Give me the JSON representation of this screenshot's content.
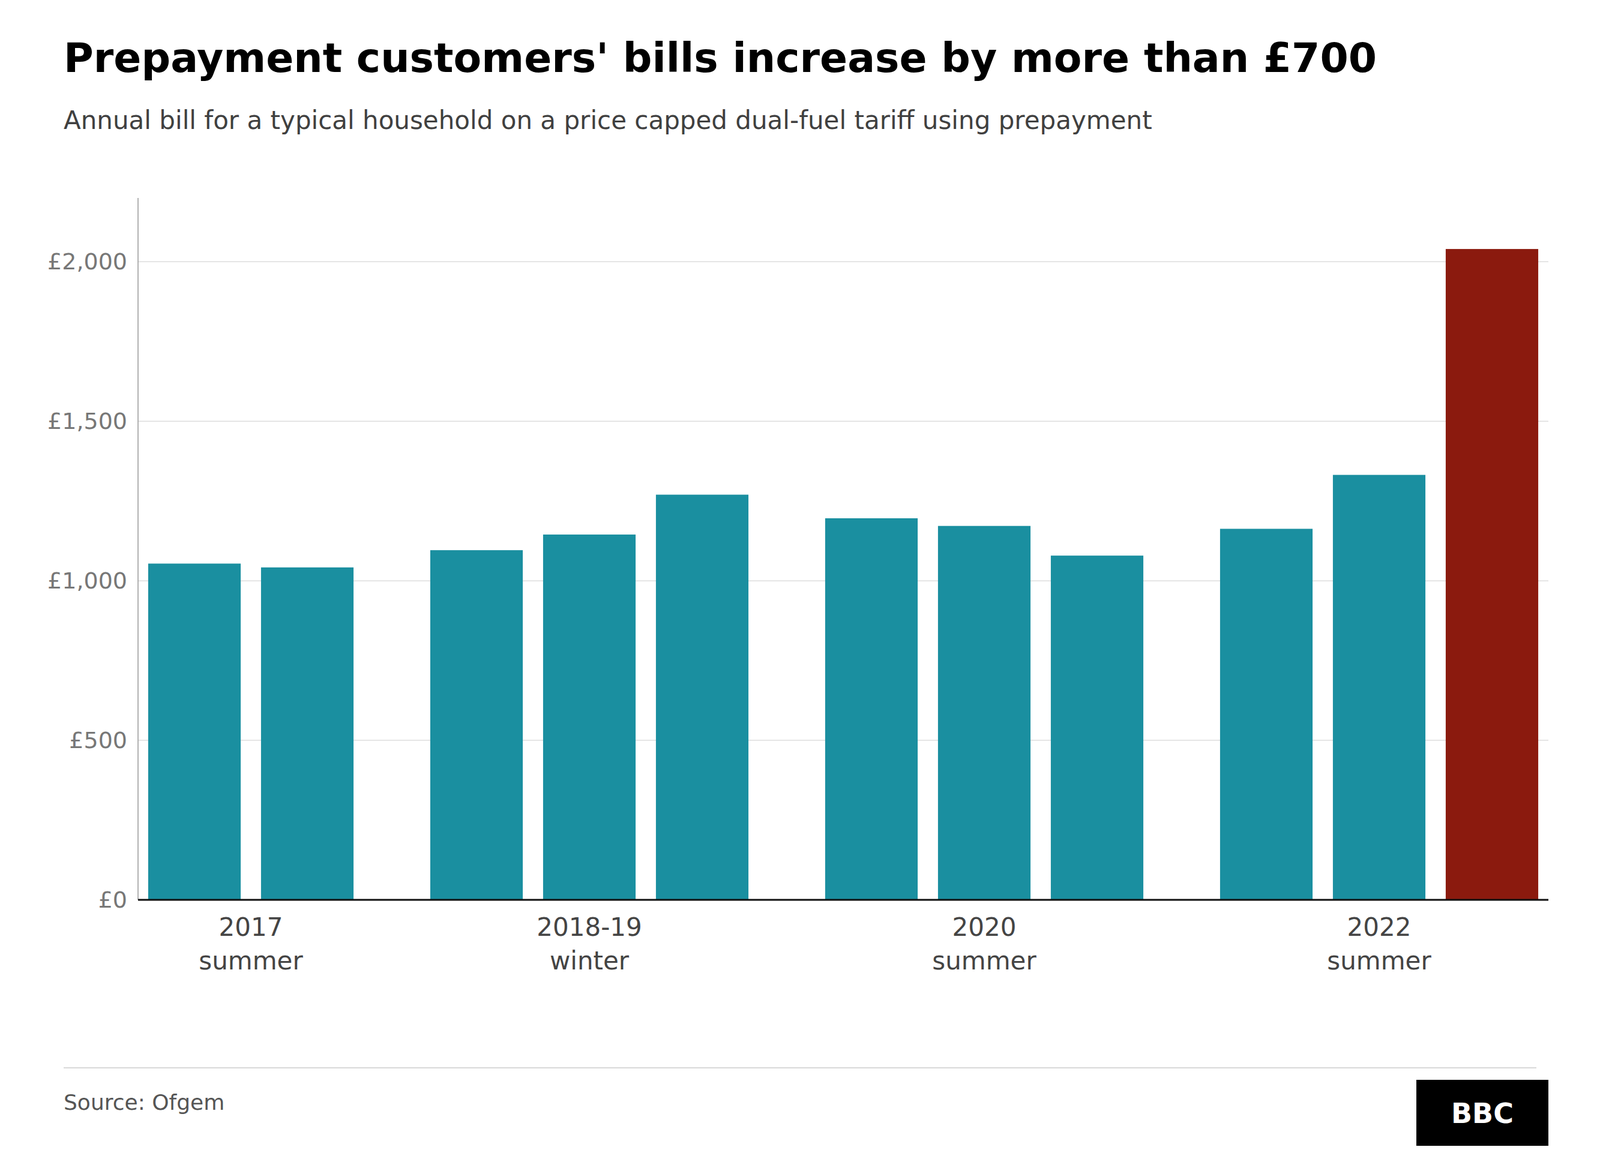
{
  "chart_data": {
    "type": "bar",
    "title": "Prepayment customers' bills increase by more than £700",
    "subtitle": "Annual bill for a typical household on a price capped dual-fuel tariff using prepayment",
    "categories": [
      "2017 summer",
      null,
      "2018-19 winter",
      null,
      null,
      "2020 summer",
      null,
      null,
      "2022 summer",
      null,
      null
    ],
    "values": [
      1054,
      1042,
      1096,
      1145,
      1270,
      1196,
      1172,
      1079,
      1163,
      1332,
      2040
    ],
    "colors": [
      "#1a8fa0",
      "#1a8fa0",
      "#1a8fa0",
      "#1a8fa0",
      "#1a8fa0",
      "#1a8fa0",
      "#1a8fa0",
      "#1a8fa0",
      "#1a8fa0",
      "#1a8fa0",
      "#8b1a0e"
    ],
    "ylim": [
      0,
      2200
    ],
    "yticks": [
      {
        "value": 0,
        "label": "£0"
      },
      {
        "value": 500,
        "label": "£500"
      },
      {
        "value": 1000,
        "label": "£1,000"
      },
      {
        "value": 1500,
        "label": "£1,500"
      },
      {
        "value": 2000,
        "label": "£2,000"
      }
    ],
    "grid": true,
    "annotations": [
      "Source: Ofgem",
      "BBC"
    ]
  }
}
